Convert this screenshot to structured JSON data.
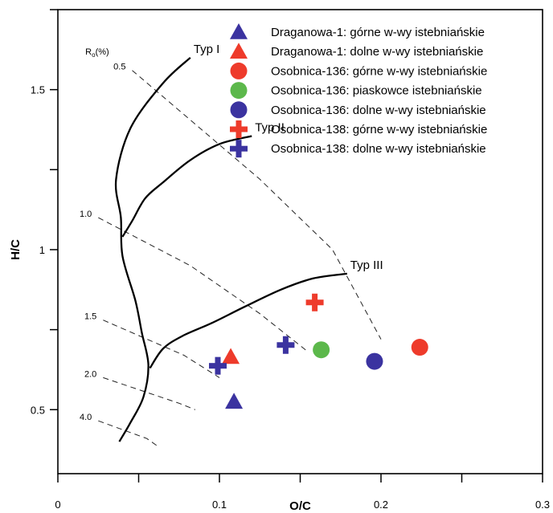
{
  "chart_data": {
    "type": "scatter",
    "xlabel": "O/C",
    "ylabel": "H/C",
    "xlim": [
      0,
      0.3
    ],
    "ylim": [
      0.3,
      1.75
    ],
    "x_ticks": [
      0,
      0.1,
      0.2,
      0.3
    ],
    "x_tick_labels": [
      "0",
      "0.1",
      "0.2",
      "0.3"
    ],
    "y_ticks": [
      0.5,
      1,
      1.5
    ],
    "y_tick_labels": [
      "0.5",
      "1",
      "1.5"
    ],
    "grid": false,
    "legend_position": "top-right",
    "series": [
      {
        "name": "Draganowa-1: górne w-wy istebniańskie",
        "marker": "triangle",
        "color": "#3b33a0",
        "points": [
          [
            0.109,
            0.525
          ]
        ]
      },
      {
        "name": "Draganowa-1: dolne w-wy istebniańskie",
        "marker": "triangle",
        "color": "#ee3b2b",
        "points": [
          [
            0.107,
            0.665
          ]
        ]
      },
      {
        "name": "Osobnica-136: górne w-wy istebniańskie",
        "marker": "circle",
        "color": "#ee3b2b",
        "points": [
          [
            0.224,
            0.695
          ]
        ]
      },
      {
        "name": "Osobnica-136: piaskowce istebniańskie",
        "marker": "circle",
        "color": "#5cb84b",
        "points": [
          [
            0.163,
            0.687
          ]
        ]
      },
      {
        "name": "Osobnica-136: dolne w-wy istebniańskie",
        "marker": "circle",
        "color": "#3b33a0",
        "points": [
          [
            0.196,
            0.651
          ]
        ]
      },
      {
        "name": "Osobnica-138: górne w-wy istebniańskie",
        "marker": "plus",
        "color": "#ee3b2b",
        "points": [
          [
            0.159,
            0.835
          ]
        ]
      },
      {
        "name": "Osobnica-138: dolne w-wy istebniańskie",
        "marker": "plus",
        "color": "#3b33a0",
        "points": [
          [
            0.099,
            0.637
          ],
          [
            0.141,
            0.702
          ]
        ]
      }
    ],
    "curves": [
      {
        "label": "Typ I",
        "points": [
          [
            0.082,
            1.6
          ],
          [
            0.065,
            1.52
          ],
          [
            0.045,
            1.38
          ],
          [
            0.036,
            1.22
          ],
          [
            0.039,
            1.1
          ],
          [
            0.04,
            0.98
          ],
          [
            0.048,
            0.84
          ],
          [
            0.052,
            0.74
          ],
          [
            0.056,
            0.64
          ],
          [
            0.053,
            0.54
          ],
          [
            0.045,
            0.46
          ],
          [
            0.038,
            0.4
          ]
        ]
      },
      {
        "label": "Typ II",
        "points": [
          [
            0.12,
            1.355
          ],
          [
            0.1,
            1.33
          ],
          [
            0.082,
            1.28
          ],
          [
            0.065,
            1.21
          ],
          [
            0.054,
            1.16
          ],
          [
            0.046,
            1.09
          ],
          [
            0.04,
            1.04
          ]
        ]
      },
      {
        "label": "Typ III",
        "points": [
          [
            0.179,
            0.925
          ],
          [
            0.158,
            0.91
          ],
          [
            0.138,
            0.875
          ],
          [
            0.115,
            0.82
          ],
          [
            0.095,
            0.77
          ],
          [
            0.077,
            0.73
          ],
          [
            0.065,
            0.69
          ],
          [
            0.057,
            0.63
          ]
        ]
      }
    ],
    "ro_title": "Ro(%)",
    "ro_lines": [
      {
        "label": "0.5",
        "points": [
          [
            0.046,
            1.56
          ],
          [
            0.125,
            1.22
          ],
          [
            0.17,
            1.0
          ],
          [
            0.2,
            0.72
          ]
        ]
      },
      {
        "label": "1.0",
        "points": [
          [
            0.025,
            1.1
          ],
          [
            0.082,
            0.95
          ],
          [
            0.125,
            0.8
          ],
          [
            0.155,
            0.68
          ]
        ]
      },
      {
        "label": "1.5",
        "points": [
          [
            0.028,
            0.78
          ],
          [
            0.078,
            0.67
          ],
          [
            0.1,
            0.6
          ]
        ]
      },
      {
        "label": "2.0",
        "points": [
          [
            0.028,
            0.6
          ],
          [
            0.075,
            0.52
          ],
          [
            0.085,
            0.5
          ]
        ]
      },
      {
        "label": "4.0",
        "points": [
          [
            0.025,
            0.465
          ],
          [
            0.055,
            0.41
          ],
          [
            0.062,
            0.385
          ]
        ]
      }
    ]
  }
}
